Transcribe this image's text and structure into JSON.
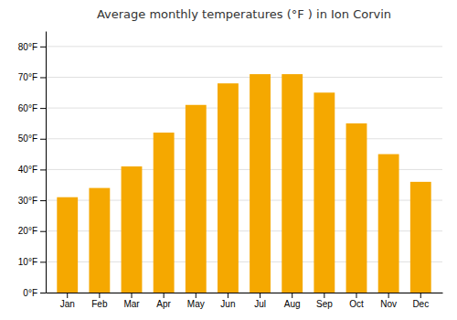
{
  "chart_data": {
    "type": "bar",
    "title": "Average monthly temperatures (°F ) in Ion Corvin",
    "categories": [
      "Jan",
      "Feb",
      "Mar",
      "Apr",
      "May",
      "Jun",
      "Jul",
      "Aug",
      "Sep",
      "Oct",
      "Nov",
      "Dec"
    ],
    "values": [
      31,
      34,
      41,
      52,
      61,
      68,
      71,
      71,
      65,
      55,
      45,
      36
    ],
    "color": "#F5A800",
    "ylim": [
      0,
      85
    ],
    "yticks": [
      {
        "value": 0,
        "label": "0°F"
      },
      {
        "value": 10,
        "label": "10°F"
      },
      {
        "value": 20,
        "label": "20°F"
      },
      {
        "value": 30,
        "label": "30°F"
      },
      {
        "value": 40,
        "label": "40°F"
      },
      {
        "value": 50,
        "label": "50°F"
      },
      {
        "value": 60,
        "label": "60°F"
      },
      {
        "value": 70,
        "label": "70°F"
      },
      {
        "value": 80,
        "label": "80°F"
      }
    ],
    "grid": true
  }
}
